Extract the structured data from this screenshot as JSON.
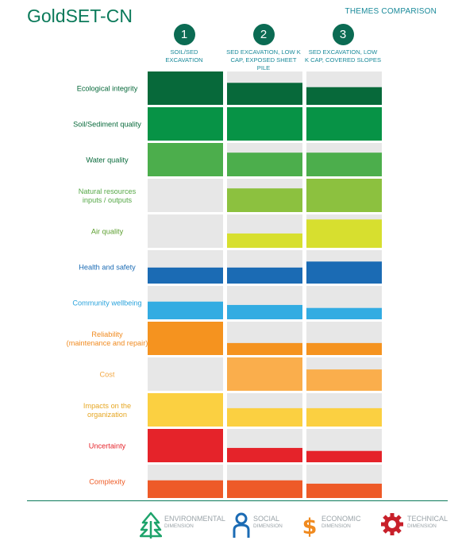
{
  "app_title": "GoldSET-CN",
  "themes_title": "THEMES COMPARISON",
  "alternatives": [
    {
      "number": "1",
      "label_lines": [
        "SOIL/SED",
        "EXCAVATION"
      ]
    },
    {
      "number": "2",
      "label_lines": [
        "SED EXCAVATION, LOW K",
        "CAP, EXPOSED SHEET PILE"
      ]
    },
    {
      "number": "3",
      "label_lines": [
        "SED EXCAVATION, LOW",
        "K CAP, COVERED SLOPES"
      ]
    }
  ],
  "chart_data": {
    "type": "bar",
    "categories": [
      [
        "Ecological integrity"
      ],
      [
        "Soil/Sediment quality"
      ],
      [
        "Water quality"
      ],
      [
        "Natural resources",
        "inputs / outputs"
      ],
      [
        "Air quality"
      ],
      [
        "Health and safety"
      ],
      [
        "Community wellbeing"
      ],
      [
        "Reliability",
        "(maintenance and repair)"
      ],
      [
        "Cost"
      ],
      [
        "Impacts on the",
        "organization"
      ],
      [
        "Uncertainty"
      ],
      [
        "Complexity"
      ]
    ],
    "category_colors": [
      "#07693a",
      "#07693a",
      "#07693a",
      "#56a847",
      "#5b9e2e",
      "#1b6bb4",
      "#2aa3dc",
      "#f08a1f",
      "#f3a843",
      "#e6a724",
      "#e5232a",
      "#ee5a24"
    ],
    "bar_colors": [
      "#07693a",
      "#079346",
      "#4cae4c",
      "#8cc13f",
      "#d7df2f",
      "#1b6bb4",
      "#33ace2",
      "#f5931f",
      "#faae4c",
      "#fbd041",
      "#e5232a",
      "#ee5a28"
    ],
    "series": [
      {
        "values": [
          1.0,
          1.0,
          1.0,
          0.0,
          0.0,
          0.48,
          0.53,
          1.0,
          0.0,
          1.0,
          1.0,
          0.53
        ]
      },
      {
        "values": [
          0.66,
          1.0,
          0.71,
          0.71,
          0.43,
          0.48,
          0.43,
          0.36,
          1.0,
          0.55,
          0.43,
          0.53
        ]
      },
      {
        "values": [
          0.53,
          1.0,
          0.71,
          1.0,
          0.85,
          0.66,
          0.34,
          0.36,
          0.64,
          0.55,
          0.34,
          0.43
        ]
      }
    ],
    "ylim": [
      0,
      1
    ],
    "grid": false,
    "legend_position": "bottom"
  },
  "legend": [
    {
      "name": "ENVIRONMENTAL",
      "sub": "DIMENSION",
      "icon": "tree-icon",
      "color": "#1ea36b"
    },
    {
      "name": "SOCIAL",
      "sub": "DIMENSION",
      "icon": "person-icon",
      "color": "#1b6bb4"
    },
    {
      "name": "ECONOMIC",
      "sub": "DIMENSION",
      "icon": "dollar-icon",
      "color": "#f08a1f"
    },
    {
      "name": "TECHNICAL",
      "sub": "DIMENSION",
      "icon": "gear-icon",
      "color": "#c8202a"
    }
  ]
}
